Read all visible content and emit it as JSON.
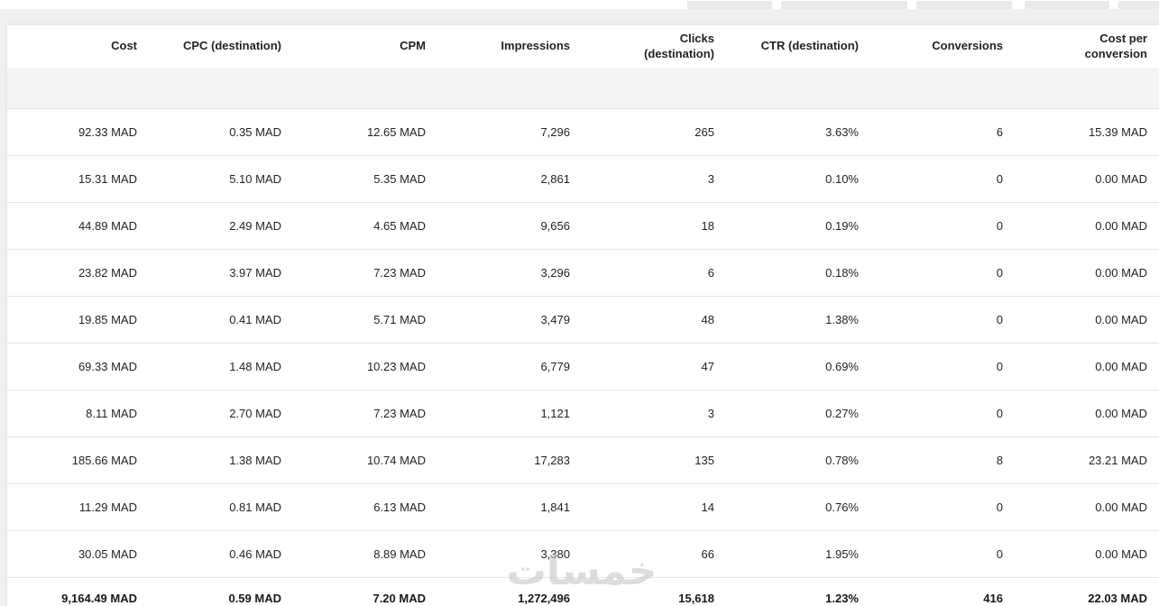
{
  "watermark": "خمسات",
  "table": {
    "columns": [
      {
        "label": "Cost"
      },
      {
        "label": "CPC (destination)"
      },
      {
        "label": "CPM"
      },
      {
        "label": "Impressions"
      },
      {
        "label": "Clicks\n(destination)"
      },
      {
        "label": "CTR (destination)"
      },
      {
        "label": "Conversions"
      },
      {
        "label": "Cost per\nconversion"
      }
    ],
    "rows": [
      [
        "92.33 MAD",
        "0.35 MAD",
        "12.65 MAD",
        "7,296",
        "265",
        "3.63%",
        "6",
        "15.39 MAD"
      ],
      [
        "15.31 MAD",
        "5.10 MAD",
        "5.35 MAD",
        "2,861",
        "3",
        "0.10%",
        "0",
        "0.00 MAD"
      ],
      [
        "44.89 MAD",
        "2.49 MAD",
        "4.65 MAD",
        "9,656",
        "18",
        "0.19%",
        "0",
        "0.00 MAD"
      ],
      [
        "23.82 MAD",
        "3.97 MAD",
        "7.23 MAD",
        "3,296",
        "6",
        "0.18%",
        "0",
        "0.00 MAD"
      ],
      [
        "19.85 MAD",
        "0.41 MAD",
        "5.71 MAD",
        "3,479",
        "48",
        "1.38%",
        "0",
        "0.00 MAD"
      ],
      [
        "69.33 MAD",
        "1.48 MAD",
        "10.23 MAD",
        "6,779",
        "47",
        "0.69%",
        "0",
        "0.00 MAD"
      ],
      [
        "8.11 MAD",
        "2.70 MAD",
        "7.23 MAD",
        "1,121",
        "3",
        "0.27%",
        "0",
        "0.00 MAD"
      ],
      [
        "185.66 MAD",
        "1.38 MAD",
        "10.74 MAD",
        "17,283",
        "135",
        "0.78%",
        "8",
        "23.21 MAD"
      ],
      [
        "11.29 MAD",
        "0.81 MAD",
        "6.13 MAD",
        "1,841",
        "14",
        "0.76%",
        "0",
        "0.00 MAD"
      ],
      [
        "30.05 MAD",
        "0.46 MAD",
        "8.89 MAD",
        "3,380",
        "66",
        "1.95%",
        "0",
        "0.00 MAD"
      ]
    ],
    "total": [
      "9,164.49 MAD",
      "0.59 MAD",
      "7.20 MAD",
      "1,272,496",
      "15,618",
      "1.23%",
      "416",
      "22.03 MAD"
    ]
  }
}
